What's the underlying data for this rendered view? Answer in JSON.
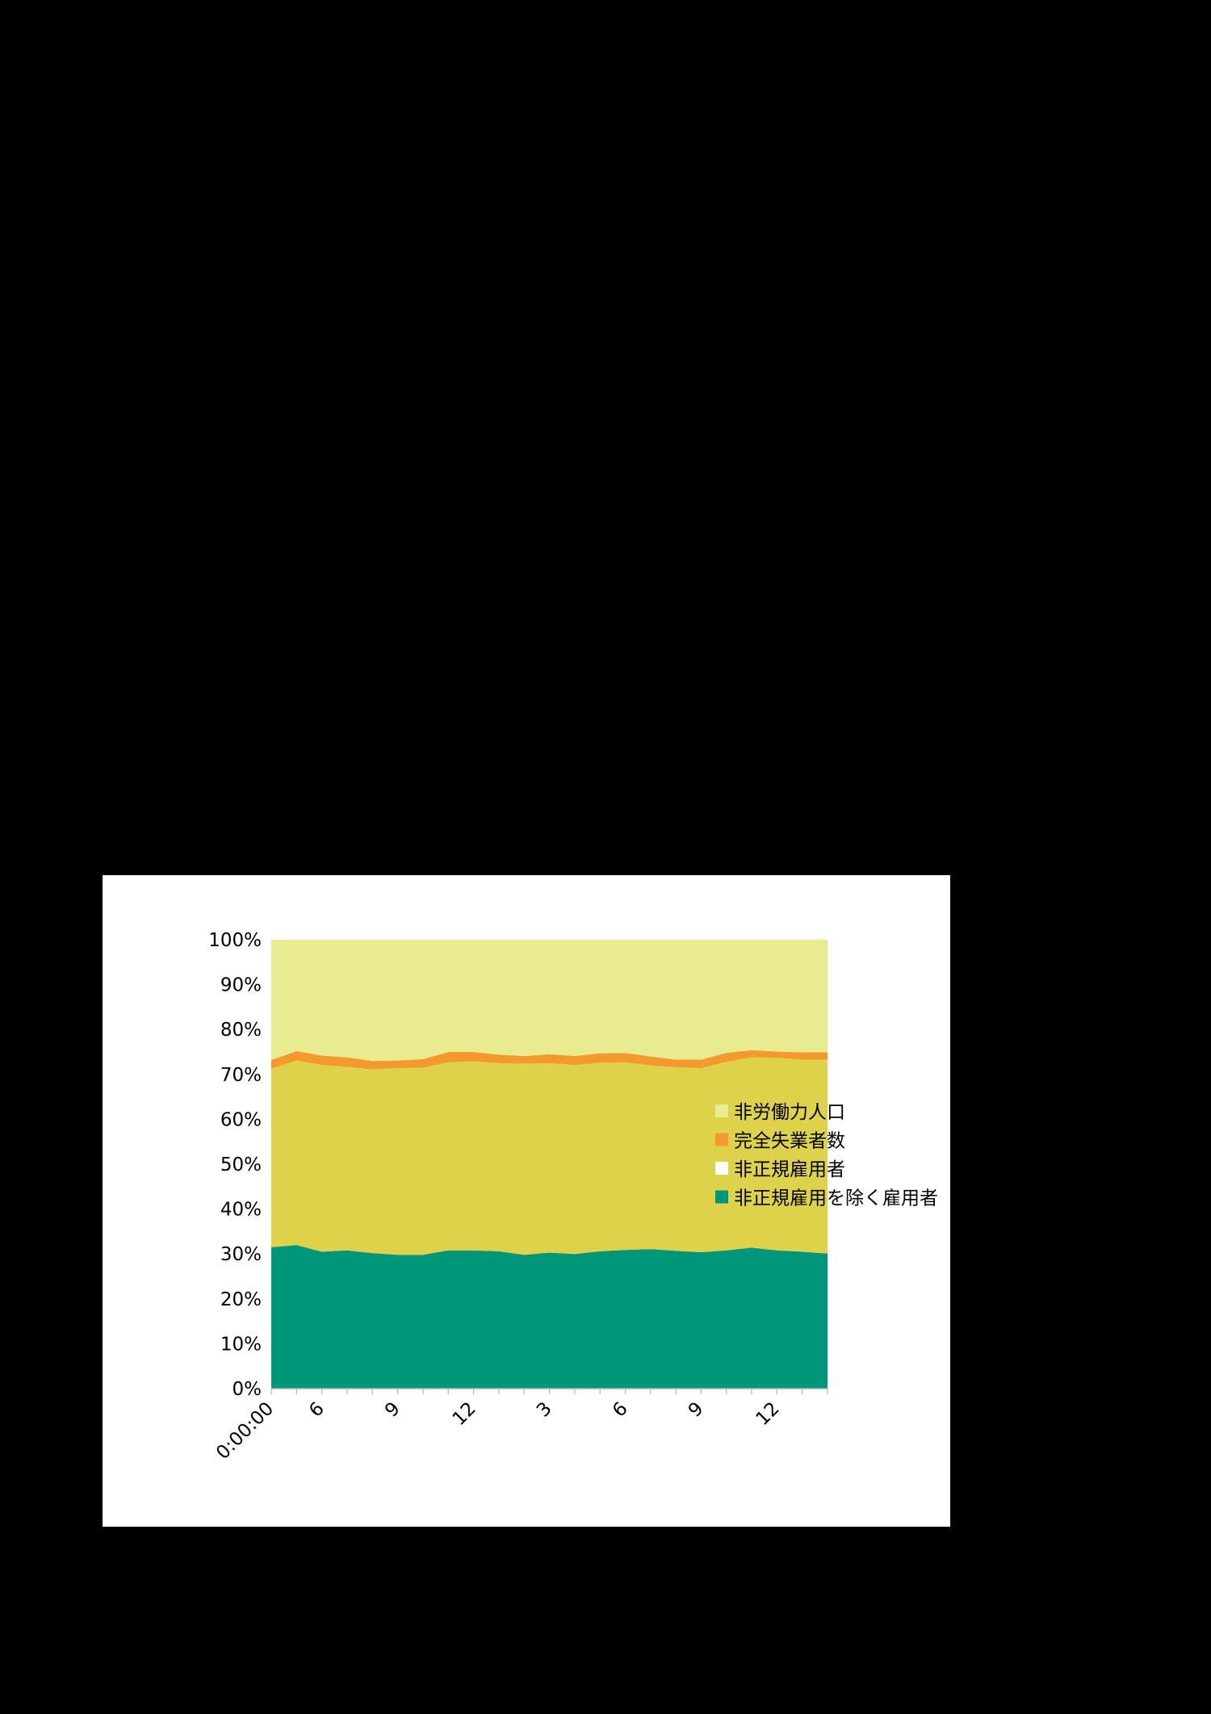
{
  "chart_data": {
    "type": "area",
    "stacked": "percent",
    "x": [
      "0:00:00",
      "",
      "6",
      "",
      "",
      "9",
      "",
      "",
      "12",
      "",
      "",
      "3",
      "",
      "",
      "6",
      "",
      "",
      "9",
      "",
      "",
      "12",
      "",
      ""
    ],
    "series": [
      {
        "name": "非正規雇用を除く雇用者",
        "color": "#009679",
        "values": [
          31.5,
          32.0,
          30.5,
          30.8,
          30.2,
          29.8,
          29.8,
          30.8,
          30.8,
          30.6,
          29.8,
          30.3,
          30.0,
          30.6,
          30.9,
          31.1,
          30.7,
          30.4,
          30.8,
          31.4,
          30.8,
          30.5,
          30.1
        ]
      },
      {
        "name": "非正規雇用者",
        "color": "#ded24a",
        "values": [
          39.8,
          41.1,
          41.6,
          40.9,
          40.9,
          41.6,
          41.7,
          41.9,
          42.1,
          41.9,
          42.6,
          42.2,
          42.1,
          42.0,
          41.8,
          40.9,
          40.9,
          41.0,
          42.0,
          42.4,
          42.9,
          42.8,
          43.2
        ]
      },
      {
        "name": "完全失業者数",
        "color": "#f4992d",
        "values": [
          1.9,
          2.1,
          2.1,
          2.1,
          1.9,
          1.7,
          1.9,
          2.3,
          2.1,
          1.9,
          1.7,
          2.0,
          2.0,
          2.1,
          2.1,
          2.0,
          1.7,
          1.9,
          2.0,
          1.6,
          1.4,
          1.6,
          1.6
        ]
      },
      {
        "name": "非労働力人口",
        "color": "#e8eb8e",
        "values": [
          26.8,
          24.8,
          25.8,
          26.2,
          27.0,
          26.9,
          26.6,
          25.0,
          25.0,
          25.6,
          25.9,
          25.5,
          25.9,
          25.3,
          25.2,
          26.0,
          26.7,
          26.7,
          25.2,
          24.6,
          24.9,
          25.1,
          25.1
        ]
      }
    ],
    "y_ticks": [
      "0%",
      "10%",
      "20%",
      "30%",
      "40%",
      "50%",
      "60%",
      "70%",
      "80%",
      "90%",
      "100%"
    ],
    "ylim": [
      0,
      100
    ],
    "legend": {
      "placement": "right",
      "order": [
        "非労働力人口",
        "完全失業者数",
        "非正規雇用者",
        "非正規雇用を除く雇用者"
      ],
      "swatch_colors": [
        "#e8eb8e",
        "#f4992d",
        "#ffffff",
        "#009679"
      ]
    },
    "title": "",
    "xlabel": "",
    "ylabel": ""
  }
}
